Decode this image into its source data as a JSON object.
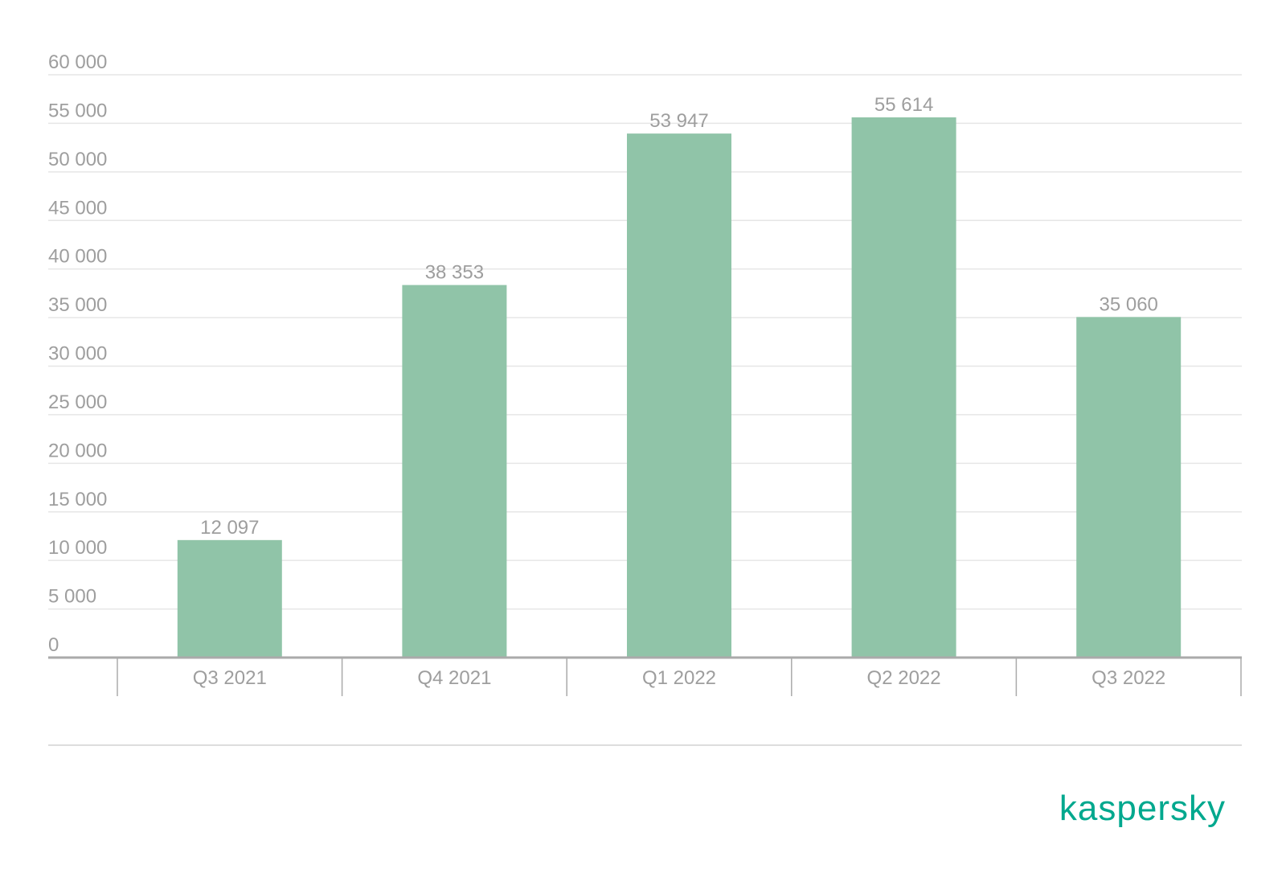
{
  "colors": {
    "bar": "#90c4a8",
    "grid": "#e6e6e6",
    "axis": "#aaaaaa",
    "text": "#9e9e9e",
    "brand": "#00a88e",
    "separator": "#dddddd"
  },
  "chart_data": {
    "type": "bar",
    "title": "",
    "xlabel": "",
    "ylabel": "",
    "categories": [
      "Q3 2021",
      "Q4 2021",
      "Q1 2022",
      "Q2 2022",
      "Q3 2022"
    ],
    "values": [
      12097,
      38353,
      53947,
      55614,
      35060
    ],
    "value_labels": [
      "12 097",
      "38 353",
      "53 947",
      "55 614",
      "35 060"
    ],
    "ylim": [
      0,
      60000
    ],
    "yticks": [
      0,
      5000,
      10000,
      15000,
      20000,
      25000,
      30000,
      35000,
      40000,
      45000,
      50000,
      55000,
      60000
    ],
    "ytick_labels": [
      "0",
      "5 000",
      "10 000",
      "15 000",
      "20 000",
      "25 000",
      "30 000",
      "35 000",
      "40 000",
      "45 000",
      "50 000",
      "55 000",
      "60 000"
    ],
    "grid": true,
    "legend": "none"
  },
  "brand": {
    "logo_text": "kaspersky"
  }
}
